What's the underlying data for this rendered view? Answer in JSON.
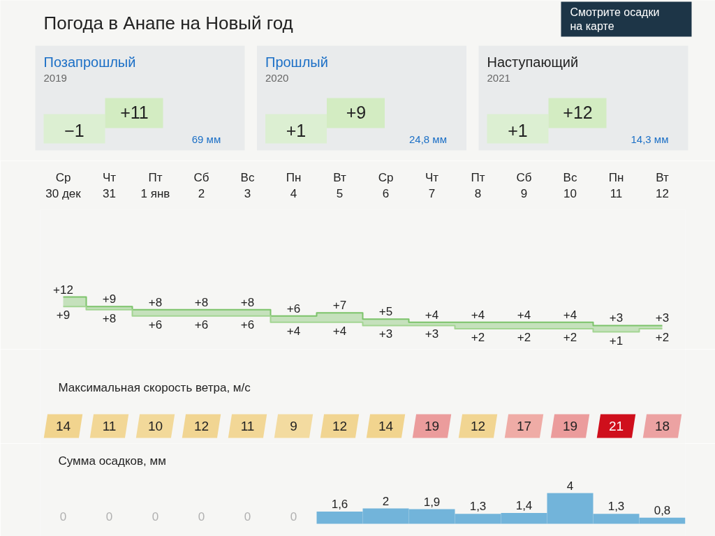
{
  "chart_data": [
    {
      "type": "other",
      "title": "Погода в Анапе на Новый год",
      "annotations": [
        "Смотрите осадки на карте",
        "Позапрошлый",
        "2019",
        "−1",
        "+11",
        "69 мм",
        "Прошлый",
        "2020",
        "+1",
        "+9",
        "24,8 мм",
        "Наступающий",
        "2021",
        "+1",
        "+12",
        "14,3 мм"
      ]
    },
    {
      "type": "step",
      "categories": [
        "Ср 30 дек",
        "Чт 31",
        "Пт 1 янв",
        "Сб 2",
        "Вс 3",
        "Пн 4",
        "Вт 5",
        "Ср 6",
        "Чт 7",
        "Пт 8",
        "Сб 9",
        "Вс 10",
        "Пн 11",
        "Вт 12"
      ],
      "tick_labels": "x",
      "series": [
        {
          "color": "#7cc36a",
          "values": [
            12,
            9,
            8,
            8,
            8,
            6,
            7,
            5,
            4,
            4,
            4,
            4,
            3,
            3
          ],
          "value_labels": [
            "+12",
            "+9",
            "+8",
            "+8",
            "+8",
            "+6",
            "+7",
            "+5",
            "+4",
            "+4",
            "+4",
            "+4",
            "+3",
            "+3"
          ]
        },
        {
          "color": "#a3d592",
          "values": [
            9,
            8,
            6,
            6,
            6,
            4,
            4,
            3,
            3,
            2,
            2,
            2,
            1,
            2
          ],
          "value_labels": [
            "+9",
            "+8",
            "+6",
            "+6",
            "+6",
            "+4",
            "+4",
            "+3",
            "+3",
            "+2",
            "+2",
            "+2",
            "+1",
            "+2"
          ]
        }
      ]
    },
    {
      "type": "heatmap",
      "title": "Максимальная скорость ветра, м/с",
      "categories": [
        "Ср 30 дек",
        "Чт 31",
        "Пт 1 янв",
        "Сб 2",
        "Вс 3",
        "Пн 4",
        "Вт 5",
        "Ср 6",
        "Чт 7",
        "Пт 8",
        "Сб 9",
        "Вс 10",
        "Пн 11",
        "Вт 12"
      ],
      "y_categories": [
        null
      ],
      "cells": [
        [
          14,
          11,
          10,
          12,
          11,
          9,
          12,
          14,
          19,
          12,
          17,
          19,
          21,
          18
        ]
      ],
      "colors": [
        "#f1d48e",
        "#f2d796",
        "#f2d99a",
        "#f1d592",
        "#f2d796",
        "#f3dba0",
        "#f1d592",
        "#f1d48e",
        "#eb9c9c",
        "#f1d592",
        "#efaca6",
        "#eb9c9c",
        "#cf0f1c",
        "#eca2a2"
      ],
      "data_labels": true,
      "tick_labels": false
    },
    {
      "type": "bar",
      "title": "Сумма осадков, мм",
      "categories": [
        "Ср 30 дек",
        "Чт 31",
        "Пт 1 янв",
        "Сб 2",
        "Вс 3",
        "Пн 4",
        "Вт 5",
        "Ср 6",
        "Чт 7",
        "Пт 8",
        "Сб 9",
        "Вс 10",
        "Пн 11",
        "Вт 12"
      ],
      "values": [
        0,
        0,
        0,
        0,
        0,
        0,
        1.6,
        2,
        1.9,
        1.3,
        1.4,
        4,
        1.3,
        0.8
      ],
      "value_labels": [
        "0",
        "0",
        "0",
        "0",
        "0",
        "0",
        "1,6",
        "2",
        "1,9",
        "1,3",
        "1,4",
        "4",
        "1,3",
        "0,8"
      ],
      "color": "#72b4da",
      "tick_labels": false
    }
  ]
}
